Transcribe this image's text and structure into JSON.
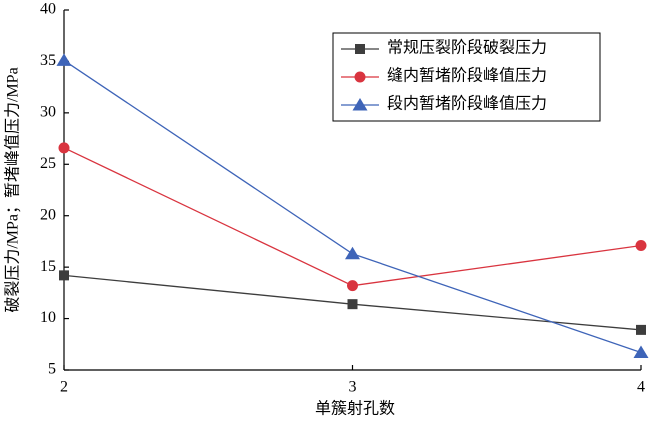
{
  "chart_data": {
    "type": "line",
    "x_label": "单簇射孔数",
    "y_label": "破裂压力/MPa；暂堵峰值压力/MPa",
    "x": [
      2,
      3,
      4
    ],
    "xlim": [
      2,
      4
    ],
    "xticks": [
      2,
      3,
      4
    ],
    "ylim": [
      5,
      40
    ],
    "yticks": [
      5,
      10,
      15,
      20,
      25,
      30,
      35,
      40
    ],
    "legend": "upper right",
    "series": [
      {
        "name": "常规压裂阶段破裂压力",
        "color": "#3d3d3d",
        "marker": "square",
        "values": [
          14.2,
          11.4,
          8.9
        ]
      },
      {
        "name": "缝内暂堵阶段峰值压力",
        "color": "#d9343f",
        "marker": "circle",
        "values": [
          26.6,
          13.2,
          17.1
        ]
      },
      {
        "name": "段内暂堵阶段峰值压力",
        "color": "#3e64b8",
        "marker": "triangle",
        "values": [
          35.1,
          16.3,
          6.7
        ]
      }
    ]
  }
}
